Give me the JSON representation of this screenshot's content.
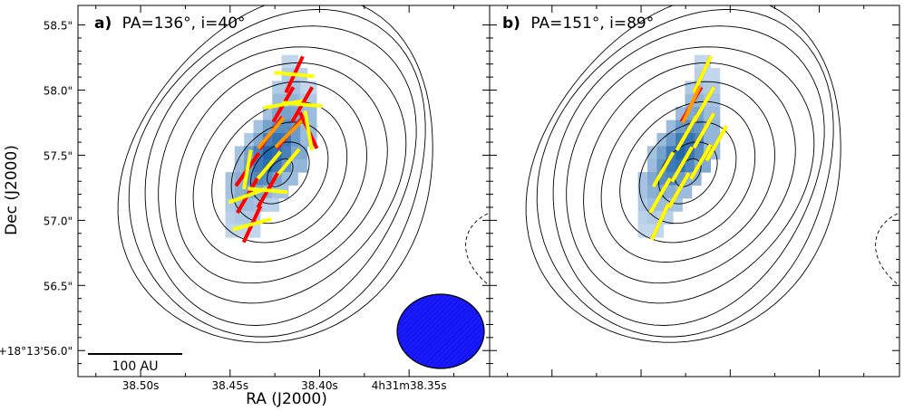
{
  "chart_data": {
    "type": "polarization-map",
    "xlabel": "RA (J2000)",
    "ylabel": "Dec (J2000)",
    "x_ticks": [
      "38.50s",
      "38.45s",
      "38.40s",
      "4h31m38.35s"
    ],
    "y_ticks": [
      "58.5\"",
      "58.0\"",
      "57.5\"",
      "57.0\"",
      "56.5\"",
      "+18°13'56.0\""
    ],
    "y_tick_values": [
      58.5,
      58.0,
      57.5,
      57.0,
      56.5,
      56.0
    ],
    "ra_tick_values": [
      38.5,
      38.45,
      38.4,
      38.35
    ],
    "xlim_ra_seconds": [
      38.535,
      38.305
    ],
    "ylim_dec_arcsec": [
      55.8,
      58.65
    ],
    "scale_bar_label": "100 AU",
    "beam": {
      "major_arcsec": 0.56,
      "minor_arcsec": 0.46,
      "pa_deg": 0,
      "color": "#1a1aff",
      "position": "bottom-right"
    },
    "colors": {
      "model_vector": "#ffff00",
      "observed_vector": "#ff0000",
      "overlap_vector": "#ff9900",
      "contour": "#000000",
      "negative_contour": "#000000"
    },
    "panels": [
      {
        "id": "a",
        "label": "a)",
        "title": "PA=136°, i=40°",
        "pa_deg": 136,
        "inclination_deg": 40,
        "vectors": [
          {
            "x": 0.05,
            "y": 0.85,
            "obs_angle": 25,
            "model_angle": 95
          },
          {
            "x": -0.02,
            "y": 0.62,
            "obs_angle": 30,
            "model_angle": 80
          },
          {
            "x": 0.1,
            "y": 0.62,
            "obs_angle": 30,
            "model_angle": 95
          },
          {
            "x": -0.1,
            "y": 0.4,
            "obs_angle": 35,
            "model_angle": 40
          },
          {
            "x": 0.02,
            "y": 0.4,
            "obs_angle": 40,
            "model_angle": 45
          },
          {
            "x": 0.14,
            "y": 0.42,
            "obs_angle": -25,
            "model_angle": -10
          },
          {
            "x": -0.25,
            "y": 0.12,
            "obs_angle": 35,
            "model_angle": 10
          },
          {
            "x": -0.12,
            "y": 0.14,
            "obs_angle": 40,
            "model_angle": 40
          },
          {
            "x": 0.0,
            "y": 0.16,
            "obs_angle": 40,
            "model_angle": 40
          },
          {
            "x": -0.25,
            "y": -0.08,
            "obs_angle": 30,
            "model_angle": 70
          },
          {
            "x": -0.12,
            "y": -0.04,
            "obs_angle": 30,
            "model_angle": 95
          },
          {
            "x": -0.22,
            "y": -0.3,
            "obs_angle": 25,
            "model_angle": 75
          }
        ],
        "pixels": [
          {
            "x": 0.02,
            "y": 0.95,
            "v": 0.15
          },
          {
            "x": 0.08,
            "y": 0.85,
            "v": 0.2
          },
          {
            "x": 0.02,
            "y": 0.85,
            "v": 0.25
          },
          {
            "x": 0.08,
            "y": 0.75,
            "v": 0.3
          },
          {
            "x": 0.02,
            "y": 0.75,
            "v": 0.3
          },
          {
            "x": -0.04,
            "y": 0.75,
            "v": 0.25
          },
          {
            "x": 0.14,
            "y": 0.75,
            "v": 0.15
          },
          {
            "x": 0.08,
            "y": 0.65,
            "v": 0.35
          },
          {
            "x": 0.02,
            "y": 0.65,
            "v": 0.4
          },
          {
            "x": -0.04,
            "y": 0.65,
            "v": 0.35
          },
          {
            "x": 0.14,
            "y": 0.65,
            "v": 0.25
          },
          {
            "x": -0.1,
            "y": 0.55,
            "v": 0.3
          },
          {
            "x": -0.04,
            "y": 0.55,
            "v": 0.5
          },
          {
            "x": 0.02,
            "y": 0.55,
            "v": 0.55
          },
          {
            "x": 0.08,
            "y": 0.55,
            "v": 0.5
          },
          {
            "x": 0.14,
            "y": 0.55,
            "v": 0.35
          },
          {
            "x": -0.16,
            "y": 0.45,
            "v": 0.3
          },
          {
            "x": -0.1,
            "y": 0.45,
            "v": 0.55
          },
          {
            "x": -0.04,
            "y": 0.45,
            "v": 0.7
          },
          {
            "x": 0.02,
            "y": 0.45,
            "v": 0.7
          },
          {
            "x": 0.08,
            "y": 0.45,
            "v": 0.6
          },
          {
            "x": 0.14,
            "y": 0.45,
            "v": 0.35
          },
          {
            "x": -0.22,
            "y": 0.35,
            "v": 0.25
          },
          {
            "x": -0.16,
            "y": 0.35,
            "v": 0.5
          },
          {
            "x": -0.1,
            "y": 0.35,
            "v": 0.8
          },
          {
            "x": -0.04,
            "y": 0.35,
            "v": 0.9
          },
          {
            "x": 0.02,
            "y": 0.35,
            "v": 0.85
          },
          {
            "x": 0.08,
            "y": 0.35,
            "v": 0.6
          },
          {
            "x": 0.14,
            "y": 0.35,
            "v": 0.35
          },
          {
            "x": -0.28,
            "y": 0.25,
            "v": 0.3
          },
          {
            "x": -0.22,
            "y": 0.25,
            "v": 0.55
          },
          {
            "x": -0.16,
            "y": 0.25,
            "v": 0.8
          },
          {
            "x": -0.1,
            "y": 0.25,
            "v": 1.0
          },
          {
            "x": -0.04,
            "y": 0.25,
            "v": 0.95
          },
          {
            "x": 0.02,
            "y": 0.25,
            "v": 0.8
          },
          {
            "x": 0.08,
            "y": 0.25,
            "v": 0.5
          },
          {
            "x": -0.28,
            "y": 0.15,
            "v": 0.35
          },
          {
            "x": -0.22,
            "y": 0.15,
            "v": 0.6
          },
          {
            "x": -0.16,
            "y": 0.15,
            "v": 0.85
          },
          {
            "x": -0.1,
            "y": 0.15,
            "v": 0.95
          },
          {
            "x": -0.04,
            "y": 0.15,
            "v": 0.85
          },
          {
            "x": 0.02,
            "y": 0.15,
            "v": 0.65
          },
          {
            "x": 0.08,
            "y": 0.15,
            "v": 0.4
          },
          {
            "x": -0.34,
            "y": 0.05,
            "v": 0.3
          },
          {
            "x": -0.28,
            "y": 0.05,
            "v": 0.45
          },
          {
            "x": -0.22,
            "y": 0.05,
            "v": 0.65
          },
          {
            "x": -0.16,
            "y": 0.05,
            "v": 0.75
          },
          {
            "x": -0.1,
            "y": 0.05,
            "v": 0.7
          },
          {
            "x": -0.04,
            "y": 0.05,
            "v": 0.55
          },
          {
            "x": 0.02,
            "y": 0.05,
            "v": 0.35
          },
          {
            "x": -0.34,
            "y": -0.05,
            "v": 0.3
          },
          {
            "x": -0.28,
            "y": -0.05,
            "v": 0.45
          },
          {
            "x": -0.22,
            "y": -0.05,
            "v": 0.5
          },
          {
            "x": -0.16,
            "y": -0.05,
            "v": 0.5
          },
          {
            "x": -0.1,
            "y": -0.05,
            "v": 0.4
          },
          {
            "x": -0.04,
            "y": -0.05,
            "v": 0.3
          },
          {
            "x": -0.34,
            "y": -0.15,
            "v": 0.25
          },
          {
            "x": -0.28,
            "y": -0.15,
            "v": 0.35
          },
          {
            "x": -0.22,
            "y": -0.15,
            "v": 0.35
          },
          {
            "x": -0.16,
            "y": -0.15,
            "v": 0.3
          },
          {
            "x": -0.1,
            "y": -0.15,
            "v": 0.2
          },
          {
            "x": -0.34,
            "y": -0.25,
            "v": 0.2
          },
          {
            "x": -0.28,
            "y": -0.25,
            "v": 0.25
          },
          {
            "x": -0.22,
            "y": -0.25,
            "v": 0.25
          },
          {
            "x": -0.34,
            "y": -0.35,
            "v": 0.15
          },
          {
            "x": -0.28,
            "y": -0.35,
            "v": 0.15
          },
          {
            "x": -0.22,
            "y": -0.35,
            "v": 0.15
          }
        ]
      },
      {
        "id": "b",
        "label": "b)",
        "title": "PA=151°, i=89°",
        "pa_deg": 151,
        "inclination_deg": 89,
        "vectors": [
          {
            "x": 0.05,
            "y": 0.85,
            "obs_angle": 25,
            "model_angle": 25
          },
          {
            "x": -0.02,
            "y": 0.62,
            "obs_angle": 30,
            "model_angle": 25
          },
          {
            "x": 0.06,
            "y": 0.62,
            "obs_angle": 30,
            "model_angle": 30
          },
          {
            "x": -0.05,
            "y": 0.4,
            "obs_angle": 30,
            "model_angle": 30
          },
          {
            "x": 0.06,
            "y": 0.42,
            "obs_angle": 30,
            "model_angle": 30
          },
          {
            "x": 0.14,
            "y": 0.32,
            "obs_angle": 30,
            "model_angle": 30
          },
          {
            "x": -0.2,
            "y": 0.12,
            "obs_angle": 30,
            "model_angle": 30
          },
          {
            "x": -0.08,
            "y": 0.16,
            "obs_angle": 30,
            "model_angle": 30
          },
          {
            "x": 0.04,
            "y": 0.18,
            "obs_angle": 30,
            "model_angle": 30
          },
          {
            "x": -0.22,
            "y": -0.08,
            "obs_angle": 30,
            "model_angle": 30
          },
          {
            "x": -0.1,
            "y": -0.04,
            "obs_angle": 30,
            "model_angle": 30
          },
          {
            "x": -0.22,
            "y": -0.28,
            "obs_angle": 25,
            "model_angle": 25
          }
        ],
        "pixels": [
          {
            "x": 0.05,
            "y": 0.95,
            "v": 0.15
          },
          {
            "x": 0.05,
            "y": 0.85,
            "v": 0.2
          },
          {
            "x": 0.11,
            "y": 0.85,
            "v": 0.15
          },
          {
            "x": -0.01,
            "y": 0.75,
            "v": 0.25
          },
          {
            "x": 0.05,
            "y": 0.75,
            "v": 0.3
          },
          {
            "x": 0.11,
            "y": 0.75,
            "v": 0.25
          },
          {
            "x": -0.01,
            "y": 0.65,
            "v": 0.35
          },
          {
            "x": 0.05,
            "y": 0.65,
            "v": 0.4
          },
          {
            "x": 0.11,
            "y": 0.65,
            "v": 0.3
          },
          {
            "x": -0.07,
            "y": 0.55,
            "v": 0.35
          },
          {
            "x": -0.01,
            "y": 0.55,
            "v": 0.5
          },
          {
            "x": 0.05,
            "y": 0.55,
            "v": 0.55
          },
          {
            "x": 0.11,
            "y": 0.55,
            "v": 0.35
          },
          {
            "x": -0.13,
            "y": 0.45,
            "v": 0.35
          },
          {
            "x": -0.07,
            "y": 0.45,
            "v": 0.6
          },
          {
            "x": -0.01,
            "y": 0.45,
            "v": 0.7
          },
          {
            "x": 0.05,
            "y": 0.45,
            "v": 0.65
          },
          {
            "x": 0.11,
            "y": 0.45,
            "v": 0.4
          },
          {
            "x": -0.19,
            "y": 0.35,
            "v": 0.35
          },
          {
            "x": -0.13,
            "y": 0.35,
            "v": 0.6
          },
          {
            "x": -0.07,
            "y": 0.35,
            "v": 0.85
          },
          {
            "x": -0.01,
            "y": 0.35,
            "v": 0.9
          },
          {
            "x": 0.05,
            "y": 0.35,
            "v": 0.75
          },
          {
            "x": 0.11,
            "y": 0.35,
            "v": 0.4
          },
          {
            "x": -0.25,
            "y": 0.25,
            "v": 0.3
          },
          {
            "x": -0.19,
            "y": 0.25,
            "v": 0.55
          },
          {
            "x": -0.13,
            "y": 0.25,
            "v": 0.85
          },
          {
            "x": -0.07,
            "y": 0.25,
            "v": 1.0
          },
          {
            "x": -0.01,
            "y": 0.25,
            "v": 0.9
          },
          {
            "x": 0.05,
            "y": 0.25,
            "v": 0.7
          },
          {
            "x": 0.11,
            "y": 0.25,
            "v": 0.35
          },
          {
            "x": -0.25,
            "y": 0.15,
            "v": 0.35
          },
          {
            "x": -0.19,
            "y": 0.15,
            "v": 0.65
          },
          {
            "x": -0.13,
            "y": 0.15,
            "v": 0.85
          },
          {
            "x": -0.07,
            "y": 0.15,
            "v": 0.9
          },
          {
            "x": -0.01,
            "y": 0.15,
            "v": 0.75
          },
          {
            "x": 0.05,
            "y": 0.15,
            "v": 0.5
          },
          {
            "x": -0.31,
            "y": 0.05,
            "v": 0.3
          },
          {
            "x": -0.25,
            "y": 0.05,
            "v": 0.5
          },
          {
            "x": -0.19,
            "y": 0.05,
            "v": 0.7
          },
          {
            "x": -0.13,
            "y": 0.05,
            "v": 0.75
          },
          {
            "x": -0.07,
            "y": 0.05,
            "v": 0.6
          },
          {
            "x": -0.01,
            "y": 0.05,
            "v": 0.4
          },
          {
            "x": -0.31,
            "y": -0.05,
            "v": 0.3
          },
          {
            "x": -0.25,
            "y": -0.05,
            "v": 0.45
          },
          {
            "x": -0.19,
            "y": -0.05,
            "v": 0.5
          },
          {
            "x": -0.13,
            "y": -0.05,
            "v": 0.45
          },
          {
            "x": -0.07,
            "y": -0.05,
            "v": 0.35
          },
          {
            "x": -0.31,
            "y": -0.15,
            "v": 0.25
          },
          {
            "x": -0.25,
            "y": -0.15,
            "v": 0.35
          },
          {
            "x": -0.19,
            "y": -0.15,
            "v": 0.35
          },
          {
            "x": -0.13,
            "y": -0.15,
            "v": 0.3
          },
          {
            "x": -0.31,
            "y": -0.25,
            "v": 0.2
          },
          {
            "x": -0.25,
            "y": -0.25,
            "v": 0.25
          },
          {
            "x": -0.19,
            "y": -0.25,
            "v": 0.2
          },
          {
            "x": -0.31,
            "y": -0.35,
            "v": 0.15
          },
          {
            "x": -0.25,
            "y": -0.35,
            "v": 0.15
          }
        ]
      }
    ],
    "contours": {
      "center_offset_arcsec": [
        -0.05,
        0.22
      ],
      "levels_semi_axes_arcsec": [
        [
          0.12,
          0.07
        ],
        [
          0.26,
          0.17
        ],
        [
          0.42,
          0.29
        ],
        [
          0.58,
          0.41
        ],
        [
          0.74,
          0.53
        ],
        [
          0.9,
          0.65
        ],
        [
          1.04,
          0.77
        ],
        [
          1.16,
          0.88
        ],
        [
          1.26,
          0.97
        ],
        [
          1.33,
          1.04
        ]
      ],
      "pa_deg": 140,
      "negative_arc": true
    }
  }
}
